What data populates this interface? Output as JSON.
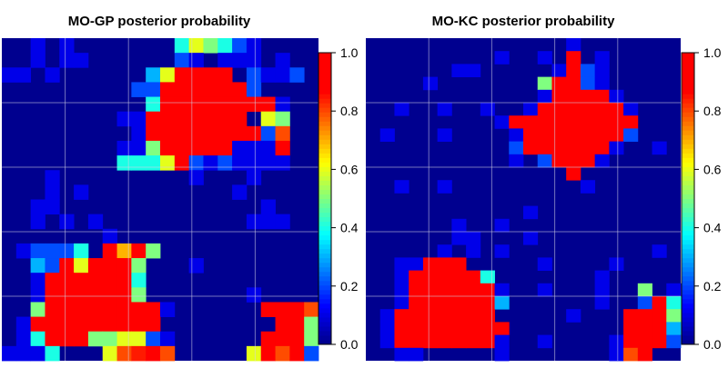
{
  "chart_data": [
    {
      "type": "heatmap",
      "title": "MO-GP posterior probability",
      "grid": true,
      "grid_blocks": 5,
      "colorbar": {
        "ticks": [
          "0.0",
          "0.2",
          "0.4",
          "0.6",
          "0.8",
          "1.0"
        ],
        "range": [
          0,
          1
        ]
      },
      "colormap": "jet",
      "rows": [
        "..1.1.......465421....",
        "..1.11......21.111.1..",
        "11.1......369AAA.2112.",
        ".........22AAAAAA2....",
        "..........4AAAAAAAA1..",
        "........11AAAAAAA.65..",
        ".........1AAAAAAAA28..",
        "........115AAAAA1119..",
        "........4446A2121111..",
        "...1.........1...1....",
        "...1.1..........1.....",
        "..11..............1...",
        "..1.1.1..........111..",
        ".......1..............",
        ".12224.A7A5...........",
        "..32A6AAA5...1........",
        "..1AAAAAA4............",
        "..1AAAAAA5.......1....",
        "..5AAAAAAAA1......AAA8",
        ".1AAAAAAAAA........AA5",
        ".14AAA556621......AAA5",
        "1114...68BA8.....6A8A2"
      ]
    },
    {
      "type": "heatmap",
      "title": "MO-KC posterior probability",
      "grid": true,
      "grid_blocks": 5,
      "colorbar": {
        "ticks": [
          "0.0",
          "0.2",
          "0.4",
          "0.6",
          "0.8",
          "1.0"
        ],
        "range": [
          0,
          1
        ]
      },
      "colormap": "jet",
      "rows": [
        "..............1.......",
        ".........1..1.A.1.....",
        "......11.....1A21.....",
        "....1.......5AA21.....",
        "............1AAAA1....",
        "..1..1..1..1AAAAAA1...",
        ".........1AAAAAAAAA...",
        ".1...1....1AAAAAAA2...",
        "..........2AAAAAA1..1.",
        "..........1.2AAA1.....",
        "..............A.......",
        "..1..1.........1......",
        "......................",
        "...........1..........",
        "......1..1............",
        "......11...1..........",
        ".....1.1.1..........1.",
        "..11AAA.....1....1....",
        "..1AAAAA4.......1.....",
        "..1AAAAAA1..1...1..5.1",
        "..1AAAAAA3......1..2A4",
        ".1AAAAAAA.....1...AAA5",
        ".1AAAAAAAA........AAA3",
        ".1AAAAAAA1..1....1AAA2",
        "..11.....1.......18A.."
      ]
    }
  ]
}
